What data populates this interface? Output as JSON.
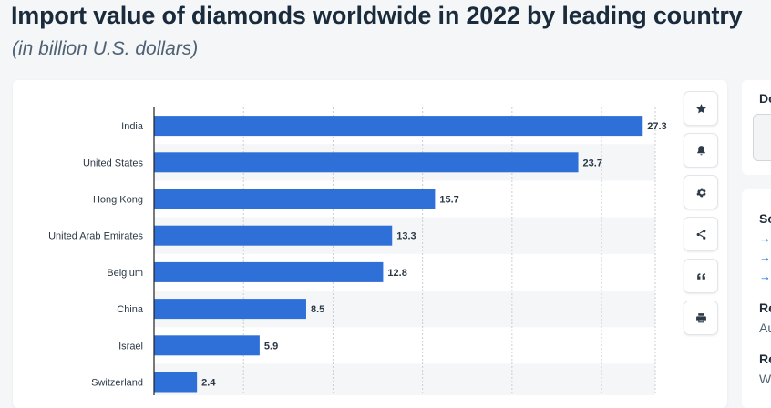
{
  "header": {
    "title": "Import value of diamonds worldwide in 2022 by leading country",
    "subtitle": "(in billion U.S. dollars)"
  },
  "chart_data": {
    "type": "bar",
    "orientation": "horizontal",
    "categories": [
      "India",
      "United States",
      "Hong Kong",
      "United Arab Emirates",
      "Belgium",
      "China",
      "Israel",
      "Switzerland"
    ],
    "values": [
      27.3,
      23.7,
      15.7,
      13.3,
      12.8,
      8.5,
      5.9,
      2.4
    ],
    "value_labels": [
      "27.3",
      "23.7",
      "15.7",
      "13.3",
      "12.8",
      "8.5",
      "5.9",
      "2.4"
    ],
    "xlim": [
      0,
      28
    ],
    "grid": true,
    "bar_color": "#2e6fd8"
  },
  "toolbar": {
    "buttons": [
      {
        "name": "favorite-button",
        "icon": "star-icon"
      },
      {
        "name": "notification-button",
        "icon": "bell-icon"
      },
      {
        "name": "settings-button",
        "icon": "gear-icon"
      },
      {
        "name": "share-button",
        "icon": "share-icon"
      },
      {
        "name": "cite-button",
        "icon": "quote-icon"
      },
      {
        "name": "print-button",
        "icon": "printer-icon"
      }
    ]
  },
  "sidebar": {
    "download_label": "Do",
    "source_heading": "So",
    "links": [
      "→",
      "→",
      "→"
    ],
    "release_heading": "Re",
    "release_value": "Au",
    "region_heading": "Re",
    "region_value": "W"
  }
}
